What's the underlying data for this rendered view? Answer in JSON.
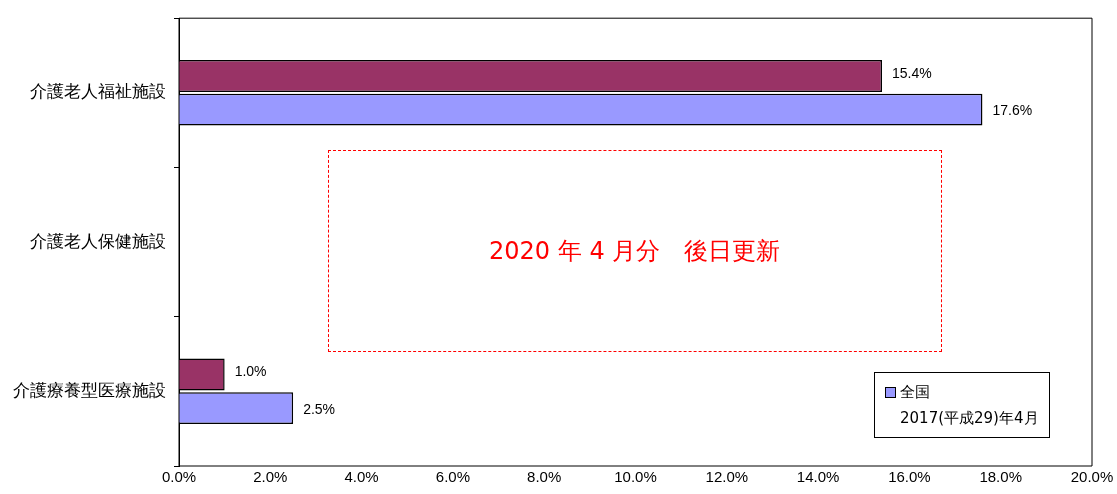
{
  "chart_data": {
    "type": "bar",
    "orientation": "horizontal",
    "categories": [
      "介護老人福祉施設",
      "介護老人保健施設",
      "介護療養型医療施設"
    ],
    "series": [
      {
        "color": "#993366",
        "values": [
          15.4,
          null,
          1.0
        ],
        "value_labels": [
          "15.4%",
          null,
          "1.0%"
        ]
      },
      {
        "name": "全国\n2017(平成29)年4月",
        "color": "#9999ff",
        "values": [
          17.6,
          null,
          2.5
        ],
        "value_labels": [
          "17.6%",
          null,
          "2.5%"
        ]
      }
    ],
    "xlim": [
      0,
      20
    ],
    "xticks": [
      {
        "value": 0,
        "label": "0.0%"
      },
      {
        "value": 2,
        "label": "2.0%"
      },
      {
        "value": 4,
        "label": "4.0%"
      },
      {
        "value": 6,
        "label": "6.0%"
      },
      {
        "value": 8,
        "label": "8.0%"
      },
      {
        "value": 10,
        "label": "10.0%"
      },
      {
        "value": 12,
        "label": "12.0%"
      },
      {
        "value": 14,
        "label": "14.0%"
      },
      {
        "value": 16,
        "label": "16.0%"
      },
      {
        "value": 18,
        "label": "18.0%"
      },
      {
        "value": 20,
        "label": "20.0%"
      }
    ],
    "grid": false,
    "legend": "bottom right",
    "annotations": [
      "2020 年 4 月分　後日更新"
    ]
  }
}
